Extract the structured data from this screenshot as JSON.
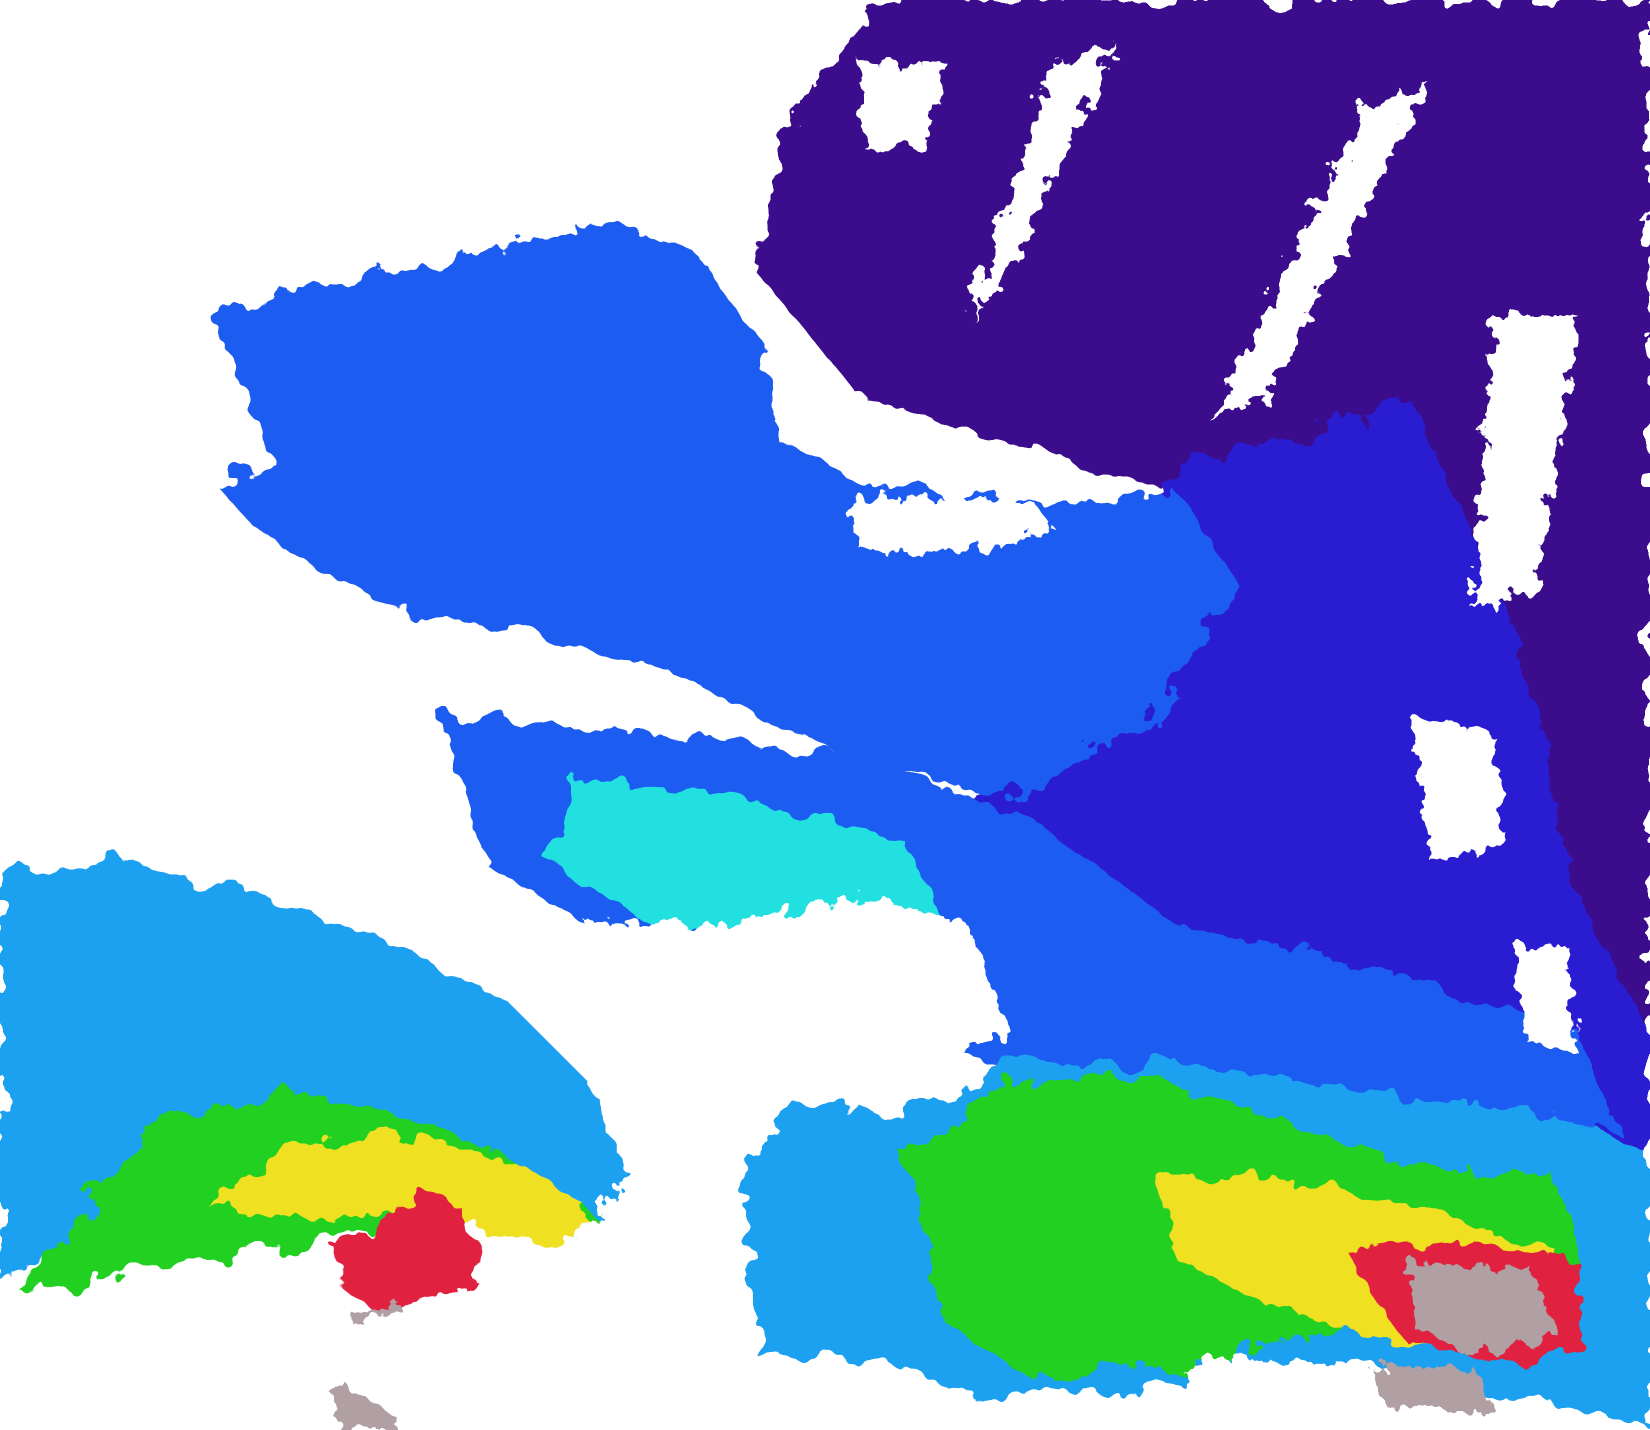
{
  "map": {
    "palette": {
      "cloud_mask": "#ffffff",
      "very_low": "#3a0a8c",
      "low": "#2a1ed0",
      "low_mid": "#1e5cf0",
      "mid": "#1ea0f0",
      "mid_high": "#20e0e0",
      "high": "#20d020",
      "very_high": "#f0e020",
      "extreme": "#e02040",
      "land_no_data": "#b0a0a4"
    }
  }
}
